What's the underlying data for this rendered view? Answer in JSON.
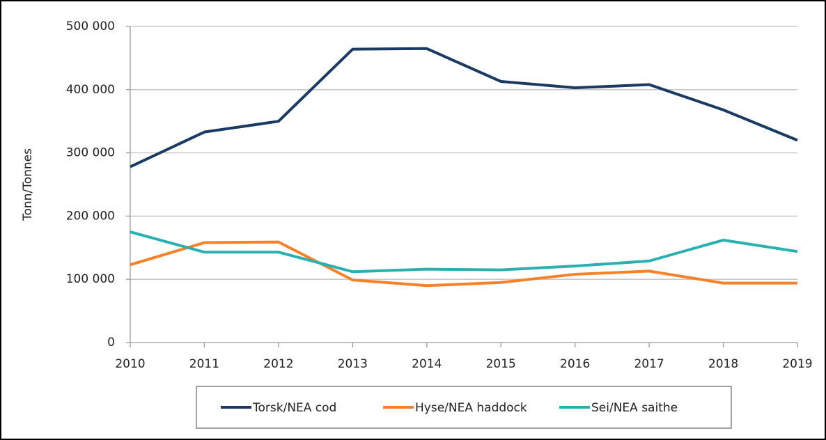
{
  "chart_data": {
    "type": "line",
    "y_label": "Tonn/Tonnes",
    "x": [
      2010,
      2011,
      2012,
      2013,
      2014,
      2015,
      2016,
      2017,
      2018,
      2019
    ],
    "xlim": [
      2010,
      2019
    ],
    "xticks": [
      2010,
      2011,
      2012,
      2013,
      2014,
      2015,
      2016,
      2017,
      2018,
      2019
    ],
    "ylim": [
      0,
      500000
    ],
    "yticks": [
      0,
      {
        "value": 100000,
        "label": "100 000"
      },
      {
        "value": 200000,
        "label": "200 000"
      },
      {
        "value": 300000,
        "label": "300 000"
      },
      {
        "value": 400000,
        "label": "400 000"
      },
      {
        "value": 500000,
        "label": "500 000"
      }
    ],
    "grid": true,
    "legend": "bottom",
    "series": [
      {
        "name": "Torsk/NEA cod",
        "color": "#1b3a63",
        "values": [
          278000,
          333000,
          350000,
          464000,
          465000,
          413000,
          403000,
          408000,
          368000,
          320000
        ]
      },
      {
        "name": "Hyse/NEA haddock",
        "color": "#f5812a",
        "values": [
          123000,
          158000,
          159000,
          99000,
          90000,
          95000,
          108000,
          113000,
          94000,
          94000
        ]
      },
      {
        "name": "Sei/NEA saithe",
        "color": "#2ab0b0",
        "values": [
          175000,
          143000,
          143000,
          112000,
          116000,
          115000,
          121000,
          129000,
          162000,
          144000
        ]
      }
    ]
  }
}
